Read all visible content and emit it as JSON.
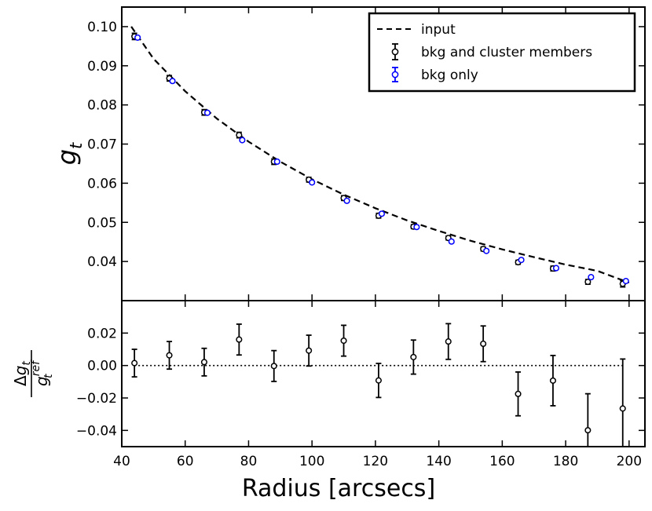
{
  "chart_data": [
    {
      "type": "scatter",
      "ylabel": "g_t",
      "ylim": [
        0.03,
        0.105
      ],
      "xlim": [
        40,
        205
      ],
      "yticks": [
        "0.04",
        "0.05",
        "0.06",
        "0.07",
        "0.08",
        "0.09",
        "0.10"
      ],
      "ytick_values": [
        0.04,
        0.05,
        0.06,
        0.07,
        0.08,
        0.09,
        0.1
      ],
      "legend": {
        "placement": "top-right",
        "entries": [
          "input",
          "bkg and cluster members",
          "bkg only"
        ]
      },
      "colors": {
        "input": "#000000",
        "bkg_and_cluster": "#000000",
        "bkg_only": "#0000ff"
      },
      "series": [
        {
          "name": "input",
          "style": "dashed-line",
          "x": [
            43,
            50,
            60,
            70,
            80,
            90,
            100,
            110,
            120,
            130,
            140,
            150,
            160,
            170,
            180,
            190,
            200
          ],
          "y": [
            0.1,
            0.0918,
            0.0835,
            0.0765,
            0.0706,
            0.0655,
            0.061,
            0.0571,
            0.0536,
            0.0505,
            0.0478,
            0.0453,
            0.0431,
            0.0411,
            0.0392,
            0.0376,
            0.0346
          ]
        },
        {
          "name": "bkg and cluster members",
          "style": "errorbar",
          "x": [
            44,
            55,
            66,
            77,
            88,
            99,
            110,
            121,
            132,
            143,
            154,
            165,
            176,
            187,
            198
          ],
          "y": [
            0.0975,
            0.0868,
            0.0781,
            0.0723,
            0.0655,
            0.0609,
            0.0562,
            0.0517,
            0.0489,
            0.046,
            0.0432,
            0.0398,
            0.0382,
            0.0348,
            0.0343
          ],
          "err": [
            0.0008,
            0.0007,
            0.0007,
            0.0007,
            0.0007,
            0.0006,
            0.0006,
            0.0006,
            0.0005,
            0.0005,
            0.0005,
            0.0005,
            0.0006,
            0.0006,
            0.0008
          ]
        },
        {
          "name": "bkg only",
          "style": "errorbar",
          "x": [
            45,
            56,
            67,
            78,
            89,
            100,
            111,
            122,
            133,
            144,
            155,
            166,
            177,
            188,
            199
          ],
          "y": [
            0.0972,
            0.0861,
            0.078,
            0.071,
            0.0655,
            0.0602,
            0.0555,
            0.0522,
            0.0488,
            0.0451,
            0.0427,
            0.0404,
            0.0383,
            0.036,
            0.035
          ],
          "err": [
            0.0003,
            0.0003,
            0.0003,
            0.0003,
            0.0003,
            0.0003,
            0.0003,
            0.0003,
            0.0003,
            0.0003,
            0.0003,
            0.0003,
            0.0003,
            0.0003,
            0.0003
          ]
        }
      ]
    },
    {
      "type": "scatter",
      "xlabel": "Radius [arcsecs]",
      "ylabel": "Δg_t / g_t^ref",
      "xlim": [
        40,
        205
      ],
      "ylim": [
        -0.05,
        0.04
      ],
      "xticks": [
        "40",
        "60",
        "80",
        "100",
        "120",
        "140",
        "160",
        "180",
        "200"
      ],
      "xtick_values": [
        40,
        60,
        80,
        100,
        120,
        140,
        160,
        180,
        200
      ],
      "yticks": [
        "−0.04",
        "−0.02",
        "0.00",
        "0.02"
      ],
      "ytick_values": [
        -0.04,
        -0.02,
        0.0,
        0.02
      ],
      "reference_line": 0.0,
      "series": [
        {
          "style": "errorbar",
          "x": [
            44,
            55,
            66,
            77,
            88,
            99,
            110,
            121,
            132,
            143,
            154,
            165,
            176,
            187,
            198
          ],
          "y": [
            0.0015,
            0.0063,
            0.0021,
            0.016,
            -0.0003,
            0.0092,
            0.0153,
            -0.0092,
            0.0052,
            0.0148,
            0.0134,
            -0.0175,
            -0.0093,
            -0.0399,
            -0.0265
          ],
          "err": [
            0.0085,
            0.0085,
            0.0085,
            0.0095,
            0.0095,
            0.0095,
            0.0095,
            0.0105,
            0.0105,
            0.011,
            0.011,
            0.0135,
            0.0155,
            0.0225,
            0.0305
          ]
        }
      ]
    }
  ]
}
